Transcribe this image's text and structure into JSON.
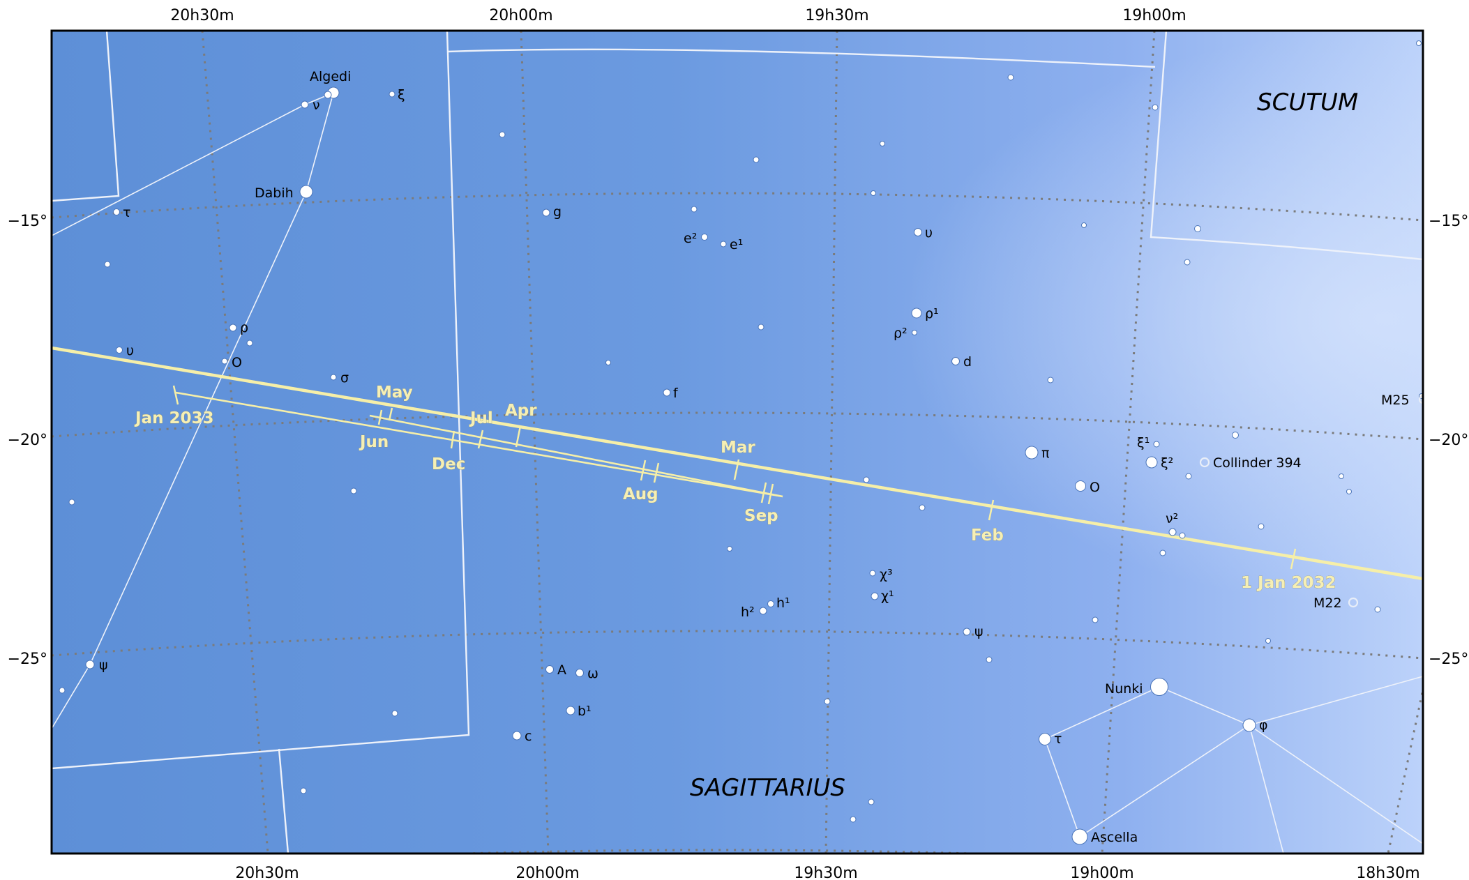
{
  "ra_labels_top": [
    "20h30m",
    "20h00m",
    "19h30m",
    "19h00m"
  ],
  "ra_labels_bottom": [
    "20h30m",
    "20h00m",
    "19h30m",
    "19h00m",
    "18h30m"
  ],
  "dec_labels_left": [
    "−15°",
    "−20°",
    "−25°"
  ],
  "dec_labels_right": [
    "−15°",
    "−20°",
    "−25°"
  ],
  "constellations": [
    "SCUTUM",
    "SAGITTARIUS"
  ],
  "named_stars": [
    "Algedi",
    "Dabih",
    "Nunki",
    "Ascella"
  ],
  "deep_sky_objects": [
    "Collinder 394",
    "M25",
    "M22"
  ],
  "greek_labels": {
    "nu_cap": "ν",
    "xi_cap": "ξ",
    "tau_cap": "τ",
    "rho_cap": "ρ",
    "upsilon_cap": "υ",
    "omicron_cap": "O",
    "sigma_cap": "σ",
    "psi_cap": "ψ",
    "g": "g",
    "e2": "e²",
    "e1": "e¹",
    "upsilon_sgr": "υ",
    "rho1": "ρ¹",
    "rho2": "ρ²",
    "d": "d",
    "f": "f",
    "pi": "π",
    "omicron_sgr": "O",
    "xi1": "ξ¹",
    "xi2": "ξ²",
    "nu2": "ν²",
    "chi3": "χ³",
    "chi1": "χ¹",
    "h2": "h²",
    "h1": "h¹",
    "psi_sgr": "ψ",
    "A": "A",
    "omega": "ω",
    "b1": "b¹",
    "c": "c",
    "tau_sgr": "τ",
    "phi": "φ"
  },
  "path_labels": [
    "Jan 2033",
    "May",
    "Jun",
    "Jul",
    "Apr",
    "Dec",
    "Mar",
    "Aug",
    "Sep",
    "Feb",
    "1 Jan 2032"
  ],
  "colors": {
    "sky_dark": "#5a8ed6",
    "sky_light": "#b4ccf8",
    "grid": "#7a7a7a",
    "boundary": "#e8eef8",
    "path": "#f6efa8",
    "star": "#ffffff"
  }
}
